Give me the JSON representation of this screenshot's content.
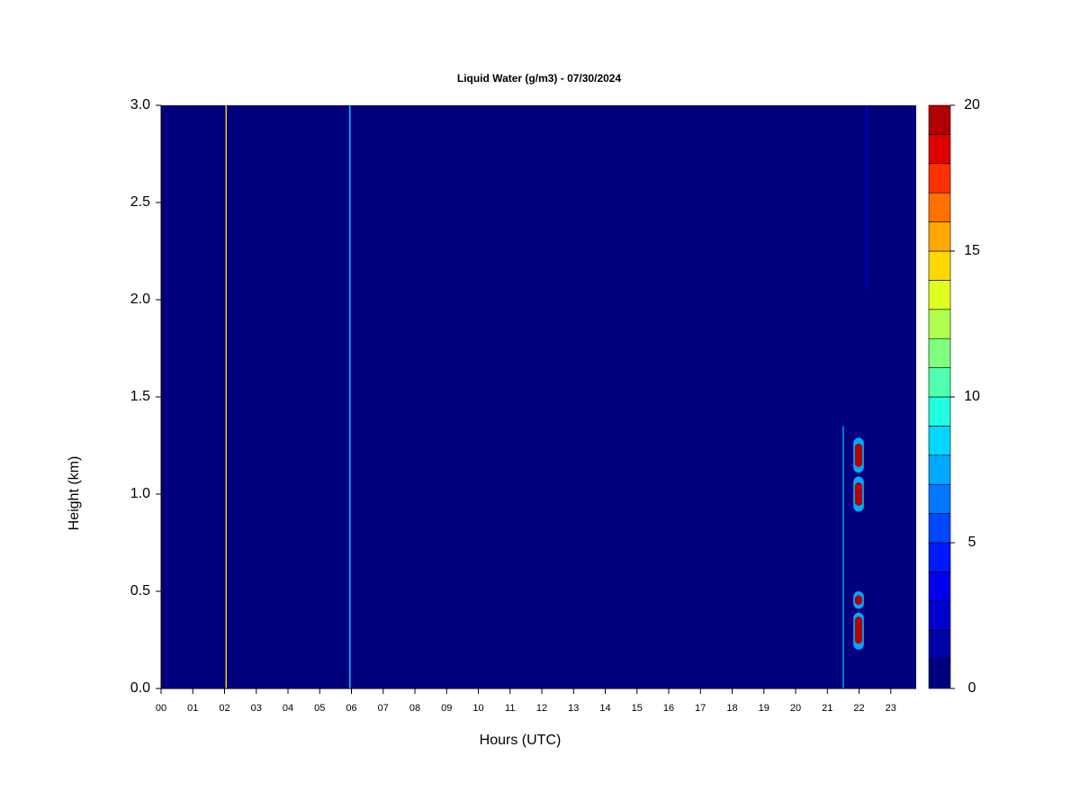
{
  "chart_data": {
    "type": "contour",
    "title": "Liquid Water (g/m3) - 07/30/2024",
    "x_label": "Hours (UTC)",
    "y_label": "Height (km)",
    "xlim": [
      0,
      23.8
    ],
    "ylim": [
      0,
      3
    ],
    "xticks": [
      {
        "value": 0,
        "label": "00"
      },
      {
        "value": 1,
        "label": "01"
      },
      {
        "value": 2,
        "label": "02"
      },
      {
        "value": 3,
        "label": "03"
      },
      {
        "value": 4,
        "label": "04"
      },
      {
        "value": 5,
        "label": "05"
      },
      {
        "value": 6,
        "label": "06"
      },
      {
        "value": 7,
        "label": "07"
      },
      {
        "value": 8,
        "label": "08"
      },
      {
        "value": 9,
        "label": "09"
      },
      {
        "value": 10,
        "label": "10"
      },
      {
        "value": 11,
        "label": "11"
      },
      {
        "value": 12,
        "label": "12"
      },
      {
        "value": 13,
        "label": "13"
      },
      {
        "value": 14,
        "label": "14"
      },
      {
        "value": 15,
        "label": "15"
      },
      {
        "value": 16,
        "label": "16"
      },
      {
        "value": 17,
        "label": "17"
      },
      {
        "value": 18,
        "label": "18"
      },
      {
        "value": 19,
        "label": "19"
      },
      {
        "value": 20,
        "label": "20"
      },
      {
        "value": 21,
        "label": "21"
      },
      {
        "value": 22,
        "label": "22"
      },
      {
        "value": 23,
        "label": "23"
      }
    ],
    "yticks": [
      {
        "value": 0,
        "label": "0.0"
      },
      {
        "value": 0.5,
        "label": "0.5"
      },
      {
        "value": 1,
        "label": "1.0"
      },
      {
        "value": 1.5,
        "label": "1.5"
      },
      {
        "value": 2,
        "label": "2.0"
      },
      {
        "value": 2.5,
        "label": "2.5"
      },
      {
        "value": 3,
        "label": "3.0"
      }
    ],
    "levels": [
      0,
      1,
      2,
      3,
      4,
      5,
      6,
      7,
      8,
      9,
      10,
      11,
      12,
      13,
      14,
      15,
      16,
      17,
      18,
      19,
      20
    ],
    "colors": [
      "#00007f",
      "#0000a8",
      "#0000cc",
      "#0000ee",
      "#0018ff",
      "#0048ff",
      "#0078ff",
      "#00a8ff",
      "#00d8ff",
      "#20ffe0",
      "#50ffb0",
      "#80ff80",
      "#b0ff50",
      "#e0ff20",
      "#ffd800",
      "#ffa800",
      "#ff7000",
      "#ff3000",
      "#e00000",
      "#b00000",
      "#7f0000"
    ],
    "colorbar_ticks": [
      0,
      5,
      10,
      15,
      20
    ],
    "features": [
      {
        "x": [
          2.03,
          2.07
        ],
        "y": [
          0,
          3
        ],
        "value": 14
      },
      {
        "x": [
          5.93,
          5.97
        ],
        "y": [
          0,
          3
        ],
        "value": 8
      },
      {
        "x": [
          21.48,
          21.52
        ],
        "y": [
          0,
          1.35
        ],
        "value": 7
      },
      {
        "x": [
          22.23,
          22.27
        ],
        "y": [
          2.05,
          3
        ],
        "value": 2
      },
      {
        "x": [
          21.82,
          22.15
        ],
        "y": [
          0.2,
          0.39
        ],
        "value": 7
      },
      {
        "x": [
          21.82,
          22.15
        ],
        "y": [
          0.41,
          0.5
        ],
        "value": 7
      },
      {
        "x": [
          21.82,
          22.15
        ],
        "y": [
          0.91,
          1.09
        ],
        "value": 7
      },
      {
        "x": [
          21.82,
          22.15
        ],
        "y": [
          1.11,
          1.29
        ],
        "value": 7
      },
      {
        "x": [
          21.87,
          22.1
        ],
        "y": [
          0.23,
          0.37
        ],
        "value": 20
      },
      {
        "x": [
          21.87,
          22.1
        ],
        "y": [
          0.43,
          0.48
        ],
        "value": 19
      },
      {
        "x": [
          21.87,
          22.1
        ],
        "y": [
          0.94,
          1.06
        ],
        "value": 19
      },
      {
        "x": [
          21.87,
          22.1
        ],
        "y": [
          1.14,
          1.26
        ],
        "value": 19
      }
    ]
  }
}
